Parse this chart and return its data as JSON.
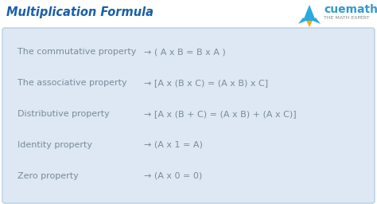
{
  "title": "Multiplication Formula",
  "title_color": "#1a5fa8",
  "title_fontsize": 10.5,
  "bg_color": "#ffffff",
  "box_bg_color": "#dde8f4",
  "box_border_color": "#b8cfe0",
  "rows": [
    {
      "label": "The commutative property",
      "formula": "→ ( A x B = B x A )"
    },
    {
      "label": "The associative property",
      "formula": "→ [A x (B x C) = (A x B) x C]"
    },
    {
      "label": "Distributive property",
      "formula": "→ [A x (B + C) = (A x B) + (A x C)]"
    },
    {
      "label": "Identity property",
      "formula": "→ (A x 1 = A)"
    },
    {
      "label": "Zero property",
      "formula": "→ (A x 0 = 0)"
    }
  ],
  "text_color": "#7a8a9a",
  "formula_color": "#7a8a9a",
  "text_fontsize": 8.0,
  "cuemath_text": "cuemath",
  "cuemath_subtext": "THE MATH EXPERT",
  "cuemath_text_color": "#3399cc",
  "cuemath_sub_color": "#888888",
  "rocket_body_color": "#29aae1",
  "rocket_flame_color": "#f5a623",
  "fig_width": 4.74,
  "fig_height": 2.56,
  "fig_dpi": 100
}
